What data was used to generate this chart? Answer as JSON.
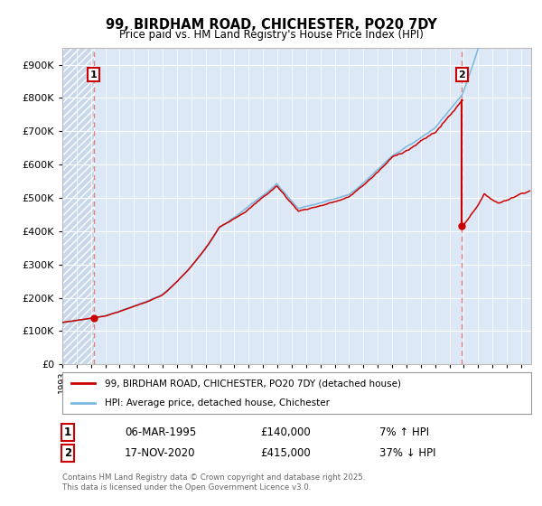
{
  "title1": "99, BIRDHAM ROAD, CHICHESTER, PO20 7DY",
  "title2": "Price paid vs. HM Land Registry's House Price Index (HPI)",
  "legend1": "99, BIRDHAM ROAD, CHICHESTER, PO20 7DY (detached house)",
  "legend2": "HPI: Average price, detached house, Chichester",
  "footnote": "Contains HM Land Registry data © Crown copyright and database right 2025.\nThis data is licensed under the Open Government Licence v3.0.",
  "label1_date": "06-MAR-1995",
  "label1_price": "£140,000",
  "label1_hpi": "7% ↑ HPI",
  "label2_date": "17-NOV-2020",
  "label2_price": "£415,000",
  "label2_hpi": "37% ↓ HPI",
  "sale1_year": 1995.18,
  "sale1_price": 140000,
  "sale2_year": 2020.88,
  "sale2_price": 415000,
  "hpi_color": "#7ab8df",
  "price_color": "#cc0000",
  "dashed_color": "#e08080",
  "background_plot": "#dce8f5",
  "background_hatch": "#c8d8ea",
  "ylim_max": 950000,
  "ylim_min": 0,
  "xmin": 1993.0,
  "xmax": 2025.7
}
